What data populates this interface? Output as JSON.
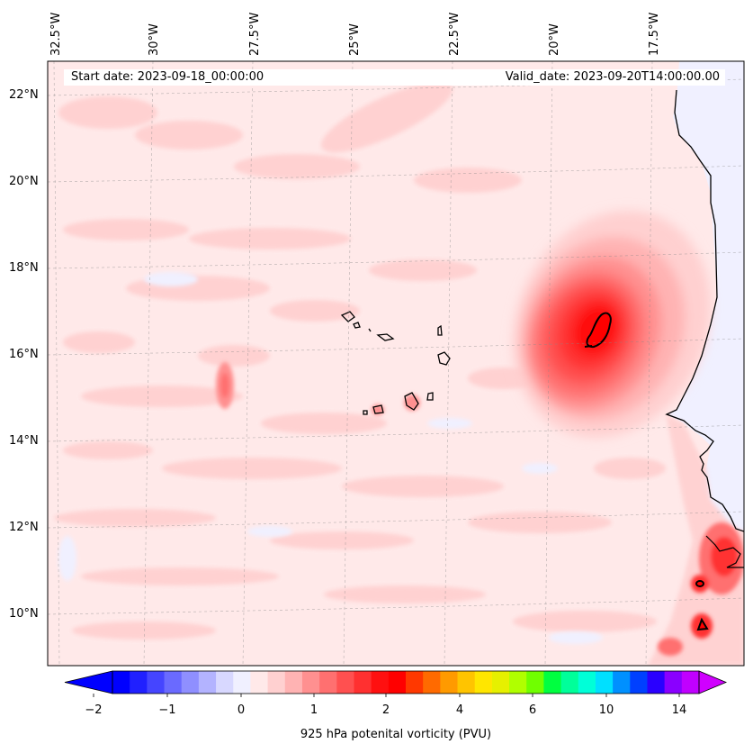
{
  "map": {
    "start_date_label": "Start date: 2023-09-18_00:00:00",
    "valid_date_label": "Valid_date: 2023-09-20T14:00:00.00",
    "lon_labels": [
      "32.5°W",
      "30°W",
      "27.5°W",
      "25°W",
      "22.5°W",
      "20°W",
      "17.5°W"
    ],
    "lat_labels": [
      "22°N",
      "20°N",
      "18°N",
      "16°N",
      "14°N",
      "12°N",
      "10°N"
    ],
    "gridlines": true
  },
  "colorbar": {
    "label": "925 hPa potenital vorticity (PVU)",
    "tick_labels": [
      "−2",
      "−1",
      "0",
      "1",
      "2",
      "4",
      "6",
      "10",
      "14"
    ],
    "tick_values": [
      -2,
      -1,
      0,
      1,
      2,
      4,
      6,
      10,
      14
    ],
    "extend": "both",
    "colors": [
      "#0000ff",
      "#2020ff",
      "#4545ff",
      "#6a6aff",
      "#8f8fff",
      "#b3b3ff",
      "#d8d8ff",
      "#f0f0ff",
      "#ffe9e9",
      "#ffd0d0",
      "#ffb3b3",
      "#ff9090",
      "#ff7070",
      "#ff5050",
      "#ff3030",
      "#ff1010",
      "#ff0000",
      "#ff3800",
      "#ff6a00",
      "#ff9a00",
      "#ffc400",
      "#ffe600",
      "#e6f000",
      "#b0ff00",
      "#70ff00",
      "#00ff40",
      "#00ff9a",
      "#00ffd8",
      "#00e0ff",
      "#0090ff",
      "#0040ff",
      "#2a00ff",
      "#8a00ff",
      "#c000ff"
    ],
    "under_color": "#0000ff",
    "over_color": "#d000ff"
  }
}
